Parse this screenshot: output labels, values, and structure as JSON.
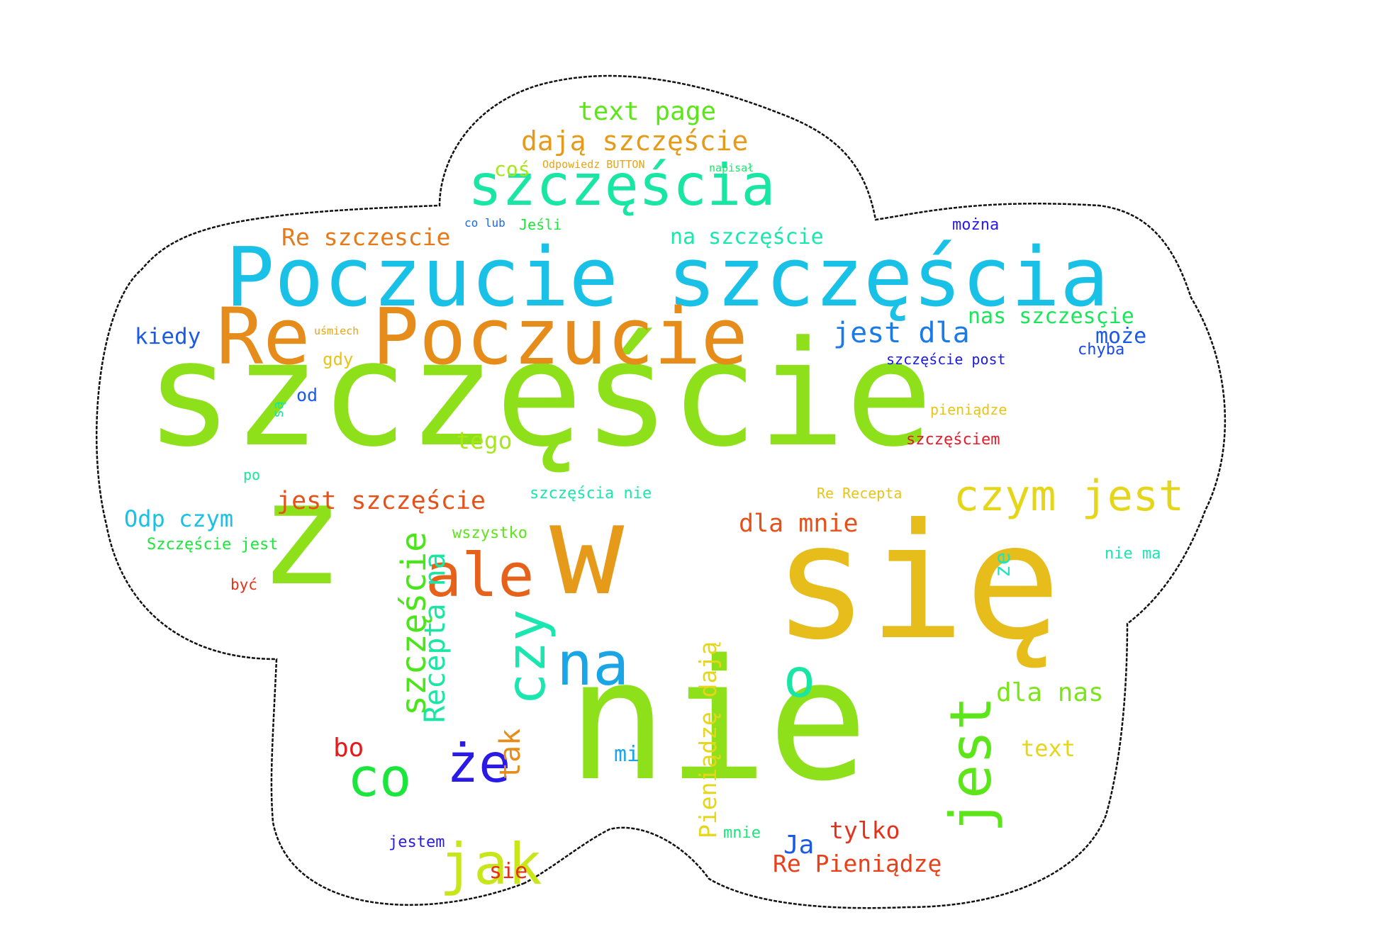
{
  "words": [
    {
      "text": "szczęście",
      "color": "#8ee01a"
    },
    {
      "text": "się",
      "color": "#e6bd1a"
    },
    {
      "text": "nie",
      "color": "#8ee01a"
    },
    {
      "text": "w",
      "color": "#e69a1a"
    },
    {
      "text": "z",
      "color": "#8ee01a"
    },
    {
      "text": "Poczucie szczęścia",
      "color": "#1ac1e6"
    },
    {
      "text": "Re",
      "color": "#e68c1a"
    },
    {
      "text": "Poczucie",
      "color": "#e68c1a"
    },
    {
      "text": "szczęścia",
      "color": "#1ae6a4"
    },
    {
      "text": "czym jest",
      "color": "#e6d61a"
    },
    {
      "text": "jest",
      "color": "#5ce61a"
    },
    {
      "text": "ale",
      "color": "#e6611a"
    },
    {
      "text": "na",
      "color": "#1aa6e6"
    },
    {
      "text": "że",
      "color": "#2a1ae6"
    },
    {
      "text": "czy",
      "color": "#1ae6b0"
    },
    {
      "text": "jak",
      "color": "#c8e61a"
    },
    {
      "text": "co",
      "color": "#1ae63c"
    },
    {
      "text": "o",
      "color": "#1ae6a4"
    },
    {
      "text": "text page",
      "color": "#5ce61a"
    },
    {
      "text": "dają szczęście",
      "color": "#e69a1a"
    },
    {
      "text": "coś",
      "color": "#a6e61a"
    },
    {
      "text": "Odpowiedz BUTTON",
      "color": "#e6a41a"
    },
    {
      "text": "napisał",
      "color": "#1ae66a"
    },
    {
      "text": "Re szczescie",
      "color": "#e67a1a"
    },
    {
      "text": "na szczęście",
      "color": "#1ae6b0"
    },
    {
      "text": "Jeśli",
      "color": "#1ae63c"
    },
    {
      "text": "co lub",
      "color": "#1a6ae6"
    },
    {
      "text": "można",
      "color": "#2a1ae6"
    },
    {
      "text": "jest dla",
      "color": "#1a7ae6"
    },
    {
      "text": "nas szczesçie",
      "color": "#1ae65a"
    },
    {
      "text": "może",
      "color": "#1a5ae6"
    },
    {
      "text": "chyba",
      "color": "#1a4ae6"
    },
    {
      "text": "szczęście post",
      "color": "#1a1ae6"
    },
    {
      "text": "kiedy",
      "color": "#1a5ae6"
    },
    {
      "text": "uśmiech",
      "color": "#e6a41a"
    },
    {
      "text": "gdy",
      "color": "#e6c41a"
    },
    {
      "text": "od",
      "color": "#1a5ae6"
    },
    {
      "text": "są",
      "color": "#1ae69a"
    },
    {
      "text": "tego",
      "color": "#a6e61a"
    },
    {
      "text": "jest szczęście",
      "color": "#e6511a"
    },
    {
      "text": "szczęścia nie",
      "color": "#1ae6b0"
    },
    {
      "text": "dla mnie",
      "color": "#e6511a"
    },
    {
      "text": "Odp czym",
      "color": "#1ac1e6"
    },
    {
      "text": "Szczęście jest",
      "color": "#1ae63c"
    },
    {
      "text": "wszystko",
      "color": "#5ce61a"
    },
    {
      "text": "ze",
      "color": "#1ae6c0"
    },
    {
      "text": "nie ma",
      "color": "#1ae6b0"
    },
    {
      "text": "dla nas",
      "color": "#7ae61a"
    },
    {
      "text": "text",
      "color": "#e6d61a"
    },
    {
      "text": "tylko",
      "color": "#e6311a"
    },
    {
      "text": "Ja",
      "color": "#1a5ae6"
    },
    {
      "text": "Re Pieniądzę",
      "color": "#e6411a"
    },
    {
      "text": "mnie",
      "color": "#1ae67a"
    },
    {
      "text": "mi",
      "color": "#1aa6e6"
    },
    {
      "text": "bo",
      "color": "#e61a1a"
    },
    {
      "text": "jestem",
      "color": "#2a1ae6"
    },
    {
      "text": "sie",
      "color": "#e6311a"
    },
    {
      "text": "Pieniądzę dają",
      "color": "#e6d61a"
    },
    {
      "text": "szczęście",
      "color": "#4ae61a"
    },
    {
      "text": "Recepta na",
      "color": "#1ae6a4"
    },
    {
      "text": "tak",
      "color": "#e68c1a"
    },
    {
      "text": "pieniądze",
      "color": "#e6c41a"
    },
    {
      "text": "szczęściem",
      "color": "#e61a2a"
    },
    {
      "text": "Re Recepta",
      "color": "#e6c41a"
    },
    {
      "text": "być",
      "color": "#e6311a"
    },
    {
      "text": "po",
      "color": "#1ae69a"
    }
  ]
}
